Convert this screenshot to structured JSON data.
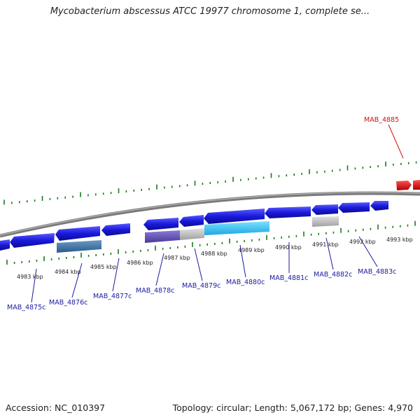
{
  "title": "Mycobacterium abscessus ATCC 19977 chromosome 1, complete se...",
  "footer": {
    "accession": "Accession: NC_010397",
    "summary": "Topology: circular; Length: 5,067,172 bp; Genes: 4,970"
  },
  "colors": {
    "background": "#ffffff",
    "tick_green": "#1a7a1a",
    "backbone": "#888888",
    "gene_blue": "#1a1adc",
    "gene_red": "#e01010",
    "label_blue": "#1a1aa0",
    "label_red": "#d01010",
    "cyan": "#30c8f0",
    "steel": "#4a7aa8",
    "purple": "#6a5ab8",
    "grey": "#c0c0c0"
  },
  "ruler": {
    "ticks": [
      {
        "label": "4983 kbp"
      },
      {
        "label": "4984 kbp"
      },
      {
        "label": "4985 kbp"
      },
      {
        "label": "4986 kbp"
      },
      {
        "label": "4987 kbp"
      },
      {
        "label": "4988 kbp"
      },
      {
        "label": "4989 kbp"
      },
      {
        "label": "4990 kbp"
      },
      {
        "label": "4991 kbp"
      },
      {
        "label": "4992 kbp"
      },
      {
        "label": "4993 kbp"
      }
    ]
  },
  "gene_labels": {
    "forward": [
      {
        "name": "MAB_4885"
      }
    ],
    "reverse": [
      {
        "name": "MAB_4875c"
      },
      {
        "name": "MAB_4876c"
      },
      {
        "name": "MAB_4877c"
      },
      {
        "name": "MAB_4878c"
      },
      {
        "name": "MAB_4879c"
      },
      {
        "name": "MAB_4880c"
      },
      {
        "name": "MAB_4881c"
      },
      {
        "name": "MAB_4882c"
      },
      {
        "name": "MAB_4883c"
      }
    ]
  }
}
